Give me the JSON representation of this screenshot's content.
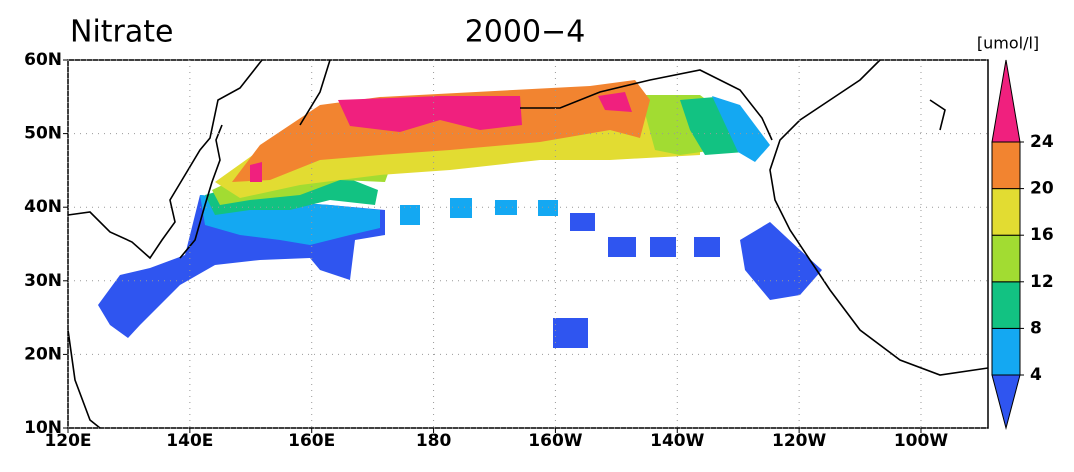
{
  "title": "Nitrate",
  "date": "2000−4",
  "map": {
    "lonlim": [
      120,
      271
    ],
    "latlim": [
      10,
      60
    ],
    "lat_ticks": [
      {
        "value": 60,
        "label": "60N"
      },
      {
        "value": 50,
        "label": "50N"
      },
      {
        "value": 40,
        "label": "40N"
      },
      {
        "value": 30,
        "label": "30N"
      },
      {
        "value": 20,
        "label": "20N"
      },
      {
        "value": 10,
        "label": "10N"
      }
    ],
    "lon_ticks": [
      {
        "value": 120,
        "label": "120E"
      },
      {
        "value": 140,
        "label": "140E"
      },
      {
        "value": 160,
        "label": "160E"
      },
      {
        "value": 180,
        "label": "180"
      },
      {
        "value": 200,
        "label": "160W"
      },
      {
        "value": 220,
        "label": "140W"
      },
      {
        "value": 240,
        "label": "120W"
      },
      {
        "value": 260,
        "label": "100W"
      }
    ],
    "grid": true
  },
  "colorbar": {
    "unit": "[umol/l]",
    "levels": [
      4,
      8,
      12,
      16,
      20,
      24
    ],
    "colors": [
      "#2f55f0",
      "#14a8f2",
      "#12c282",
      "#a2dc32",
      "#e2dc32",
      "#f28430",
      "#f0207e"
    ]
  }
}
